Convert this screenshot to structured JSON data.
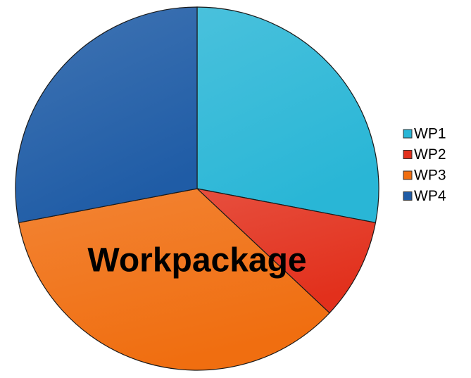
{
  "chart_data": {
    "type": "pie",
    "title": "Workpackage",
    "categories": [
      "WP1",
      "WP2",
      "WP3",
      "WP4"
    ],
    "values": [
      28,
      9,
      35,
      28
    ],
    "colors": [
      "#29b6d6",
      "#e2301c",
      "#f06e10",
      "#1f5ca6"
    ],
    "legend": "right"
  }
}
